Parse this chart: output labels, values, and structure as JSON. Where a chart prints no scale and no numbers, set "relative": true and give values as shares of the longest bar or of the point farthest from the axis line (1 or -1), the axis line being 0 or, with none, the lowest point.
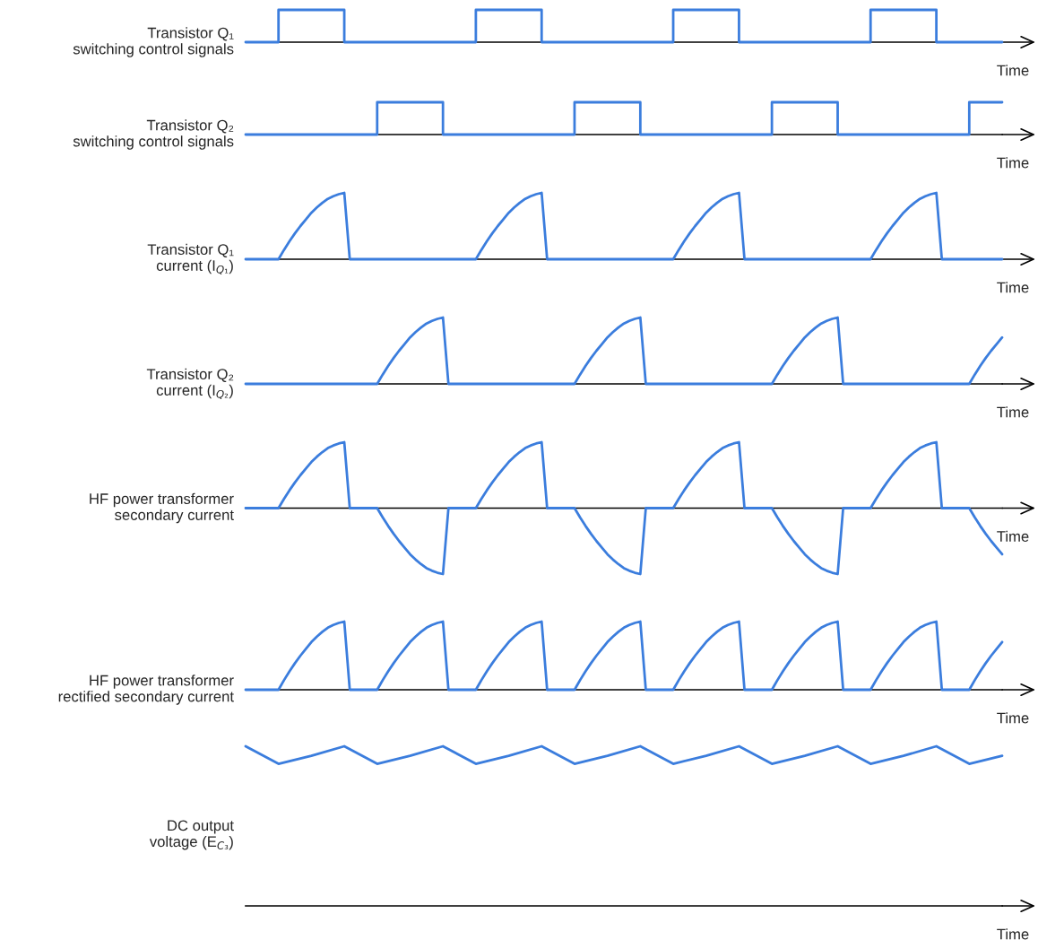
{
  "chart_data": [
    {
      "type": "step",
      "relative": true,
      "ylabel": "Transistor Q₁\nswitching control signals",
      "xlabel": "Time",
      "categories": [
        null,
        null,
        null,
        null,
        null,
        null,
        null,
        null,
        null,
        null,
        null,
        null,
        null,
        null,
        null,
        null,
        null,
        null,
        null,
        null,
        null,
        null,
        null,
        null
      ],
      "series": [
        {
          "color": "#3b7ddd",
          "values": [
            0,
            1,
            1,
            0,
            0,
            0,
            0,
            1,
            1,
            0,
            0,
            0,
            0,
            1,
            1,
            0,
            0,
            0,
            0,
            1,
            1,
            0,
            0,
            0
          ]
        }
      ]
    },
    {
      "type": "step",
      "relative": true,
      "ylabel": "Transistor Q₂\nswitching control signals",
      "xlabel": "Time",
      "categories": [
        null,
        null,
        null,
        null,
        null,
        null,
        null,
        null,
        null,
        null,
        null,
        null,
        null,
        null,
        null,
        null,
        null,
        null,
        null,
        null,
        null,
        null,
        null,
        null
      ],
      "series": [
        {
          "color": "#3b7ddd",
          "values": [
            0,
            0,
            0,
            0,
            1,
            1,
            0,
            0,
            0,
            0,
            1,
            1,
            0,
            0,
            0,
            0,
            1,
            1,
            0,
            0,
            0,
            0,
            1,
            1
          ]
        }
      ]
    },
    {
      "type": "line",
      "relative": true,
      "ylabel": "Transistor Q₁\ncurrent (I$_{Q₁}$)",
      "xlabel": "Time",
      "categories": [
        null,
        null,
        null,
        null,
        null,
        null,
        null,
        null,
        null,
        null,
        null,
        null,
        null,
        null,
        null,
        null,
        null,
        null,
        null,
        null,
        null,
        null,
        null,
        null,
        null,
        null,
        null,
        null,
        null,
        null,
        null,
        null,
        null,
        null,
        null,
        null,
        null,
        null,
        null,
        null,
        null,
        null,
        null,
        null,
        null,
        null,
        null,
        null,
        null,
        null,
        null,
        null,
        null,
        null,
        null,
        null,
        null,
        null,
        null,
        null,
        null,
        null,
        null,
        null,
        null,
        null,
        null,
        null,
        null,
        null,
        null,
        null,
        null,
        null,
        null,
        null,
        null,
        null,
        null,
        null,
        null,
        null,
        null,
        null,
        null,
        null,
        null,
        null,
        null,
        null,
        null,
        null,
        null,
        null,
        null,
        null,
        null,
        null,
        null,
        null,
        null,
        null,
        null,
        null,
        null,
        null,
        null,
        null,
        null,
        null,
        null,
        null,
        null,
        null,
        null,
        null,
        null,
        null,
        null,
        null,
        null,
        null,
        null,
        null,
        null,
        null,
        null,
        null,
        null,
        null,
        null,
        null,
        null,
        null,
        null,
        null,
        null,
        null,
        null
      ],
      "series": [
        {
          "color": "#3b7ddd",
          "values": [
            0,
            0,
            0,
            0,
            0,
            0,
            0,
            0.14,
            0.27,
            0.39,
            0.5,
            0.6,
            0.7,
            0.78,
            0.85,
            0.91,
            0.95,
            0.98,
            1,
            0,
            0,
            0,
            0,
            0,
            0,
            0,
            0,
            0,
            0,
            0,
            0,
            0,
            0,
            0,
            0,
            0,
            0,
            0,
            0,
            0,
            0,
            0,
            0,
            0.14,
            0.27,
            0.39,
            0.5,
            0.6,
            0.7,
            0.78,
            0.85,
            0.91,
            0.95,
            0.98,
            1,
            0,
            0,
            0,
            0,
            0,
            0,
            0,
            0,
            0,
            0,
            0,
            0,
            0,
            0,
            0,
            0,
            0,
            0,
            0,
            0,
            0,
            0,
            0,
            0,
            0.14,
            0.27,
            0.39,
            0.5,
            0.6,
            0.7,
            0.78,
            0.85,
            0.91,
            0.95,
            0.98,
            1,
            0,
            0,
            0,
            0,
            0,
            0,
            0,
            0,
            0,
            0,
            0,
            0,
            0,
            0,
            0,
            0,
            0,
            0,
            0,
            0,
            0,
            0,
            0,
            0,
            0.14,
            0.27,
            0.39,
            0.5,
            0.6,
            0.7,
            0.78,
            0.85,
            0.91,
            0.95,
            0.98,
            1,
            0,
            0,
            0,
            0,
            0,
            0,
            0,
            0,
            0,
            0,
            0,
            0
          ]
        }
      ]
    },
    {
      "type": "line",
      "relative": true,
      "ylabel": "Transistor Q₂\ncurrent (I$_{Q₂}$)",
      "xlabel": "Time",
      "categories": [
        null,
        null,
        null,
        null,
        null,
        null,
        null,
        null,
        null,
        null,
        null,
        null,
        null,
        null,
        null,
        null,
        null,
        null,
        null,
        null,
        null,
        null,
        null,
        null,
        null,
        null,
        null,
        null,
        null,
        null,
        null,
        null,
        null,
        null,
        null,
        null,
        null,
        null,
        null,
        null,
        null,
        null,
        null,
        null,
        null,
        null,
        null,
        null,
        null,
        null,
        null,
        null,
        null,
        null,
        null,
        null,
        null,
        null,
        null,
        null,
        null,
        null,
        null,
        null,
        null,
        null,
        null,
        null,
        null,
        null,
        null,
        null,
        null,
        null,
        null,
        null,
        null,
        null,
        null,
        null,
        null,
        null,
        null,
        null,
        null,
        null,
        null,
        null,
        null,
        null,
        null,
        null,
        null,
        null,
        null,
        null,
        null,
        null,
        null,
        null,
        null,
        null,
        null,
        null,
        null,
        null,
        null,
        null,
        null,
        null,
        null,
        null,
        null,
        null,
        null,
        null,
        null,
        null,
        null,
        null,
        null,
        null,
        null,
        null,
        null,
        null,
        null,
        null,
        null,
        null,
        null,
        null,
        null,
        null,
        null,
        null,
        null,
        null,
        null
      ],
      "series": [
        {
          "color": "#3b7ddd",
          "values": [
            0,
            0,
            0,
            0,
            0,
            0,
            0,
            0,
            0,
            0,
            0,
            0,
            0,
            0,
            0,
            0,
            0,
            0,
            0,
            0,
            0,
            0,
            0,
            0,
            0,
            0.14,
            0.27,
            0.39,
            0.5,
            0.6,
            0.7,
            0.78,
            0.85,
            0.91,
            0.95,
            0.98,
            1,
            0,
            0,
            0,
            0,
            0,
            0,
            0,
            0,
            0,
            0,
            0,
            0,
            0,
            0,
            0,
            0,
            0,
            0,
            0,
            0,
            0,
            0,
            0,
            0,
            0.14,
            0.27,
            0.39,
            0.5,
            0.6,
            0.7,
            0.78,
            0.85,
            0.91,
            0.95,
            0.98,
            1,
            0,
            0,
            0,
            0,
            0,
            0,
            0,
            0,
            0,
            0,
            0,
            0,
            0,
            0,
            0,
            0,
            0,
            0,
            0,
            0,
            0,
            0,
            0,
            0,
            0.14,
            0.27,
            0.39,
            0.5,
            0.6,
            0.7,
            0.78,
            0.85,
            0.91,
            0.95,
            0.98,
            1,
            0,
            0,
            0,
            0,
            0,
            0,
            0,
            0,
            0,
            0,
            0,
            0,
            0,
            0,
            0,
            0,
            0,
            0,
            0,
            0,
            0,
            0,
            0,
            0,
            0.14,
            0.27,
            0.39,
            0.5,
            0.6,
            0.7
          ]
        }
      ]
    },
    {
      "type": "line",
      "relative": true,
      "ylabel": "HF power transformer\nsecondary current",
      "xlabel": "Time",
      "categories": [
        null,
        null,
        null,
        null,
        null,
        null,
        null,
        null,
        null,
        null,
        null,
        null,
        null,
        null,
        null,
        null,
        null,
        null,
        null,
        null,
        null,
        null,
        null,
        null,
        null,
        null,
        null,
        null,
        null,
        null,
        null,
        null,
        null,
        null,
        null,
        null,
        null,
        null,
        null,
        null,
        null,
        null,
        null,
        null,
        null,
        null,
        null,
        null,
        null,
        null,
        null,
        null,
        null,
        null,
        null,
        null,
        null,
        null,
        null,
        null,
        null,
        null,
        null,
        null,
        null,
        null,
        null,
        null,
        null,
        null,
        null,
        null,
        null,
        null,
        null,
        null,
        null,
        null,
        null,
        null,
        null,
        null,
        null,
        null,
        null,
        null,
        null,
        null,
        null,
        null,
        null,
        null,
        null,
        null,
        null,
        null,
        null,
        null,
        null,
        null,
        null,
        null,
        null,
        null,
        null,
        null,
        null,
        null,
        null,
        null,
        null,
        null,
        null,
        null,
        null,
        null,
        null,
        null,
        null,
        null,
        null,
        null,
        null,
        null,
        null,
        null,
        null,
        null,
        null,
        null,
        null,
        null,
        null,
        null,
        null,
        null,
        null,
        null,
        null
      ],
      "series": [
        {
          "color": "#3b7ddd",
          "values": [
            0,
            0,
            0,
            0,
            0,
            0,
            0,
            0.14,
            0.27,
            0.39,
            0.5,
            0.6,
            0.7,
            0.78,
            0.85,
            0.91,
            0.95,
            0.98,
            1,
            0,
            0,
            0,
            0,
            0,
            0,
            -0.14,
            -0.27,
            -0.39,
            -0.5,
            -0.6,
            -0.7,
            -0.78,
            -0.85,
            -0.91,
            -0.95,
            -0.98,
            -1,
            0,
            0,
            0,
            0,
            0,
            0,
            0.14,
            0.27,
            0.39,
            0.5,
            0.6,
            0.7,
            0.78,
            0.85,
            0.91,
            0.95,
            0.98,
            1,
            0,
            0,
            0,
            0,
            0,
            0,
            -0.14,
            -0.27,
            -0.39,
            -0.5,
            -0.6,
            -0.7,
            -0.78,
            -0.85,
            -0.91,
            -0.95,
            -0.98,
            -1,
            0,
            0,
            0,
            0,
            0,
            0,
            0.14,
            0.27,
            0.39,
            0.5,
            0.6,
            0.7,
            0.78,
            0.85,
            0.91,
            0.95,
            0.98,
            1,
            0,
            0,
            0,
            0,
            0,
            0,
            -0.14,
            -0.27,
            -0.39,
            -0.5,
            -0.6,
            -0.7,
            -0.78,
            -0.85,
            -0.91,
            -0.95,
            -0.98,
            -1,
            0,
            0,
            0,
            0,
            0,
            0,
            0.14,
            0.27,
            0.39,
            0.5,
            0.6,
            0.7,
            0.78,
            0.85,
            0.91,
            0.95,
            0.98,
            1,
            0,
            0,
            0,
            0,
            0,
            0,
            -0.14,
            -0.27,
            -0.39,
            -0.5,
            -0.6,
            -0.7
          ]
        }
      ]
    },
    {
      "type": "line",
      "relative": true,
      "ylabel": "HF power transformer\nrectified secondary current",
      "xlabel": "Time",
      "categories": [
        null,
        null,
        null,
        null,
        null,
        null,
        null,
        null,
        null,
        null,
        null,
        null,
        null,
        null,
        null,
        null,
        null,
        null,
        null,
        null,
        null,
        null,
        null,
        null,
        null,
        null,
        null,
        null,
        null,
        null,
        null,
        null,
        null,
        null,
        null,
        null,
        null,
        null,
        null,
        null,
        null,
        null,
        null,
        null,
        null,
        null,
        null,
        null,
        null,
        null,
        null,
        null,
        null,
        null,
        null,
        null,
        null,
        null,
        null,
        null,
        null,
        null,
        null,
        null,
        null,
        null,
        null,
        null,
        null,
        null,
        null,
        null,
        null,
        null,
        null,
        null,
        null,
        null,
        null,
        null,
        null,
        null,
        null,
        null,
        null,
        null,
        null,
        null,
        null,
        null,
        null,
        null,
        null,
        null,
        null,
        null,
        null,
        null,
        null,
        null,
        null,
        null,
        null,
        null,
        null,
        null,
        null,
        null,
        null,
        null,
        null,
        null,
        null,
        null,
        null,
        null,
        null,
        null,
        null,
        null,
        null,
        null,
        null,
        null,
        null,
        null,
        null,
        null,
        null,
        null,
        null,
        null,
        null,
        null,
        null,
        null,
        null,
        null,
        null
      ],
      "series": [
        {
          "color": "#3b7ddd",
          "values": [
            0,
            0,
            0,
            0,
            0,
            0,
            0,
            0.14,
            0.27,
            0.39,
            0.5,
            0.6,
            0.7,
            0.78,
            0.85,
            0.91,
            0.95,
            0.98,
            1,
            0,
            0,
            0,
            0,
            0,
            0,
            0.14,
            0.27,
            0.39,
            0.5,
            0.6,
            0.7,
            0.78,
            0.85,
            0.91,
            0.95,
            0.98,
            1,
            0,
            0,
            0,
            0,
            0,
            0,
            0.14,
            0.27,
            0.39,
            0.5,
            0.6,
            0.7,
            0.78,
            0.85,
            0.91,
            0.95,
            0.98,
            1,
            0,
            0,
            0,
            0,
            0,
            0,
            0.14,
            0.27,
            0.39,
            0.5,
            0.6,
            0.7,
            0.78,
            0.85,
            0.91,
            0.95,
            0.98,
            1,
            0,
            0,
            0,
            0,
            0,
            0,
            0.14,
            0.27,
            0.39,
            0.5,
            0.6,
            0.7,
            0.78,
            0.85,
            0.91,
            0.95,
            0.98,
            1,
            0,
            0,
            0,
            0,
            0,
            0,
            0.14,
            0.27,
            0.39,
            0.5,
            0.6,
            0.7,
            0.78,
            0.85,
            0.91,
            0.95,
            0.98,
            1,
            0,
            0,
            0,
            0,
            0,
            0,
            0.14,
            0.27,
            0.39,
            0.5,
            0.6,
            0.7,
            0.78,
            0.85,
            0.91,
            0.95,
            0.98,
            1,
            0,
            0,
            0,
            0,
            0,
            0,
            0.14,
            0.27,
            0.39,
            0.5,
            0.6,
            0.7
          ]
        }
      ]
    },
    {
      "type": "line",
      "relative": true,
      "ylabel": "DC output\nvoltage (E$_{C₃}$)",
      "xlabel": "Time",
      "categories": [
        null,
        null,
        null,
        null,
        null,
        null,
        null,
        null,
        null,
        null,
        null,
        null,
        null,
        null,
        null,
        null,
        null,
        null,
        null,
        null,
        null,
        null,
        null,
        null
      ],
      "series": [
        {
          "color": "#3b7ddd",
          "values": [
            1,
            0.89,
            0.94,
            1,
            0.89,
            0.94,
            1,
            0.89,
            0.94,
            1,
            0.89,
            0.94,
            1,
            0.89,
            0.94,
            1,
            0.89,
            0.94,
            1,
            0.89,
            0.94,
            1,
            0.89,
            0.94
          ]
        }
      ]
    }
  ]
}
